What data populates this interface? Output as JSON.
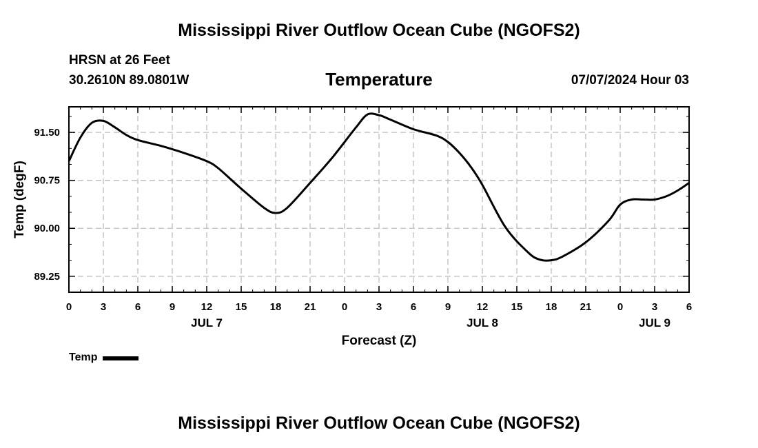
{
  "header": {
    "title": "Mississippi River Outflow Ocean Cube (NGOFS2)",
    "station": "HRSN at 26 Feet",
    "coords": "30.2610N  89.0801W",
    "subtitle": "Temperature",
    "datetime": "07/07/2024 Hour 03"
  },
  "footer": {
    "title": "Mississippi River Outflow Ocean Cube (NGOFS2)"
  },
  "legend": {
    "label": "Temp",
    "color": "#000000"
  },
  "chart_data": {
    "type": "line",
    "title": "Temperature",
    "xlabel": "Forecast (Z)",
    "ylabel": "Temp (degF)",
    "xlim": [
      0,
      54
    ],
    "ylim": [
      89.0,
      91.9
    ],
    "grid": true,
    "x_ticks": [
      0,
      3,
      6,
      9,
      12,
      15,
      18,
      21,
      24,
      27,
      30,
      33,
      36,
      39,
      42,
      45,
      48,
      51,
      54
    ],
    "x_tick_labels": [
      "0",
      "3",
      "6",
      "9",
      "12",
      "15",
      "18",
      "21",
      "0",
      "3",
      "6",
      "9",
      "12",
      "15",
      "18",
      "21",
      "0",
      "3",
      "6"
    ],
    "y_ticks": [
      89.25,
      90.0,
      90.75,
      91.5
    ],
    "y_tick_labels": [
      "89.25",
      "90.00",
      "90.75",
      "91.50"
    ],
    "day_labels": [
      {
        "x": 12,
        "label": "JUL 7"
      },
      {
        "x": 36,
        "label": "JUL 8"
      },
      {
        "x": 51,
        "label": "JUL 9"
      }
    ],
    "series": [
      {
        "name": "Temp",
        "color": "#000000",
        "x": [
          0,
          1,
          2,
          3,
          4,
          5,
          6,
          8,
          10,
          12,
          13,
          15,
          17,
          18,
          19,
          21,
          23,
          25,
          26,
          27,
          28,
          30,
          32,
          33,
          34,
          35,
          36,
          38,
          40,
          41,
          42,
          43,
          45,
          47,
          48,
          49,
          50,
          51,
          52,
          53,
          54
        ],
        "y": [
          91.05,
          91.42,
          91.65,
          91.68,
          91.58,
          91.46,
          91.38,
          91.29,
          91.18,
          91.05,
          90.94,
          90.62,
          90.32,
          90.24,
          90.32,
          90.71,
          91.12,
          91.58,
          91.78,
          91.77,
          91.7,
          91.55,
          91.45,
          91.35,
          91.18,
          90.96,
          90.68,
          90.02,
          89.62,
          89.51,
          89.5,
          89.56,
          89.78,
          90.12,
          90.37,
          90.45,
          90.45,
          90.45,
          90.5,
          90.59,
          90.71
        ]
      }
    ]
  }
}
